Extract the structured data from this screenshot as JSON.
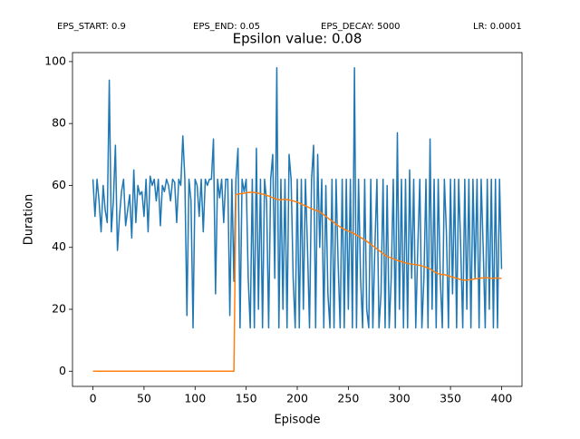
{
  "chart_data": {
    "type": "line",
    "annotations": [
      "EPS_START: 0.9",
      "EPS_END: 0.05",
      "EPS_DECAY: 5000",
      "LR: 0.0001"
    ],
    "title": "Epsilon value: 0.08",
    "x_label": "Episode",
    "y_label": "Duration",
    "xlim": [
      -20,
      420
    ],
    "ylim": [
      -4.9,
      102.9
    ],
    "xticks": [
      0,
      50,
      100,
      150,
      200,
      250,
      300,
      350,
      400
    ],
    "yticks": [
      0,
      20,
      40,
      60,
      80,
      100
    ],
    "x": [
      0,
      2,
      4,
      6,
      8,
      10,
      12,
      14,
      16,
      18,
      20,
      22,
      24,
      26,
      28,
      30,
      32,
      34,
      36,
      38,
      40,
      42,
      44,
      46,
      48,
      50,
      52,
      54,
      56,
      58,
      60,
      62,
      64,
      66,
      68,
      70,
      72,
      74,
      76,
      78,
      80,
      82,
      84,
      86,
      88,
      90,
      92,
      94,
      96,
      98,
      100,
      102,
      104,
      106,
      108,
      110,
      112,
      114,
      116,
      118,
      120,
      122,
      124,
      126,
      128,
      130,
      132,
      134,
      136,
      138,
      140,
      142,
      144,
      146,
      148,
      150,
      152,
      154,
      156,
      158,
      160,
      162,
      164,
      166,
      168,
      170,
      172,
      174,
      176,
      178,
      180,
      182,
      184,
      186,
      188,
      190,
      192,
      194,
      196,
      198,
      200,
      202,
      204,
      206,
      208,
      210,
      212,
      214,
      216,
      218,
      220,
      222,
      224,
      226,
      228,
      230,
      232,
      234,
      236,
      238,
      240,
      242,
      244,
      246,
      248,
      250,
      252,
      254,
      256,
      258,
      260,
      262,
      264,
      266,
      268,
      270,
      272,
      274,
      276,
      278,
      280,
      282,
      284,
      286,
      288,
      290,
      292,
      294,
      296,
      298,
      300,
      302,
      304,
      306,
      308,
      310,
      312,
      314,
      316,
      318,
      320,
      322,
      324,
      326,
      328,
      330,
      332,
      334,
      336,
      338,
      340,
      342,
      344,
      346,
      348,
      350,
      352,
      354,
      356,
      358,
      360,
      362,
      364,
      366,
      368,
      370,
      372,
      374,
      376,
      378,
      380,
      382,
      384,
      386,
      388,
      390,
      392,
      394,
      396,
      398,
      400
    ],
    "series": [
      {
        "color": "#1f77b4",
        "values": [
          62,
          50,
          62,
          55,
          45,
          60,
          52,
          48,
          94,
          45,
          55,
          73,
          39,
          50,
          58,
          62,
          47,
          52,
          57,
          43,
          65,
          48,
          60,
          57,
          58,
          50,
          62,
          45,
          63,
          60,
          62,
          55,
          62,
          47,
          60,
          58,
          62,
          60,
          55,
          62,
          61,
          48,
          62,
          60,
          76,
          62,
          18,
          62,
          55,
          14,
          62,
          60,
          50,
          62,
          45,
          62,
          60,
          62,
          62,
          75,
          25,
          62,
          56,
          62,
          48,
          62,
          62,
          18,
          62,
          29,
          62,
          72,
          14,
          62,
          58,
          62,
          30,
          14,
          62,
          14,
          72,
          20,
          62,
          14,
          62,
          55,
          14,
          62,
          70,
          30,
          98,
          14,
          62,
          20,
          62,
          14,
          70,
          62,
          30,
          14,
          62,
          14,
          62,
          20,
          62,
          40,
          14,
          62,
          73,
          14,
          70,
          40,
          62,
          14,
          60,
          25,
          14,
          62,
          14,
          62,
          35,
          14,
          62,
          14,
          62,
          20,
          62,
          14,
          98,
          14,
          62,
          30,
          14,
          62,
          20,
          14,
          62,
          14,
          40,
          62,
          14,
          25,
          62,
          14,
          60,
          14,
          30,
          62,
          14,
          77,
          20,
          62,
          14,
          62,
          14,
          65,
          30,
          62,
          14,
          40,
          62,
          14,
          30,
          62,
          14,
          75,
          20,
          62,
          14,
          62,
          30,
          14,
          62,
          45,
          14,
          62,
          25,
          62,
          14,
          62,
          40,
          14,
          62,
          20,
          62,
          14,
          62,
          30,
          62,
          14,
          62,
          40,
          14,
          62,
          20,
          62,
          14,
          62,
          14,
          62,
          33
        ]
      },
      {
        "color": "#ff7f0e",
        "values": [
          0,
          0,
          0,
          0,
          0,
          0,
          0,
          0,
          0,
          0,
          0,
          0,
          0,
          0,
          0,
          0,
          0,
          0,
          0,
          0,
          0,
          0,
          0,
          0,
          0,
          0,
          0,
          0,
          0,
          0,
          0,
          0,
          0,
          0,
          0,
          0,
          0,
          0,
          0,
          0,
          0,
          0,
          0,
          0,
          0,
          0,
          0,
          0,
          0,
          0,
          0,
          0,
          0,
          0,
          0,
          0,
          0,
          0,
          0,
          0,
          0,
          0,
          0,
          0,
          0,
          0,
          0,
          0,
          0,
          0,
          57,
          57.2,
          57.3,
          57.4,
          57.5,
          57.6,
          57.7,
          57.8,
          57.8,
          57.7,
          57.6,
          57.5,
          57.3,
          57.2,
          57.0,
          56.8,
          56.6,
          56.3,
          56.0,
          55.8,
          55.6,
          55.4,
          55.3,
          55.5,
          55.5,
          55.4,
          55.3,
          55.2,
          55.0,
          54.8,
          54.6,
          54.3,
          54.0,
          53.7,
          53.4,
          53.1,
          52.8,
          52.5,
          52.2,
          52.0,
          51.8,
          51.5,
          51.0,
          50.5,
          50.0,
          49.5,
          49.0,
          48.5,
          48.0,
          47.5,
          47.0,
          46.6,
          46.2,
          45.8,
          45.5,
          45.3,
          45.0,
          44.7,
          44.4,
          44.0,
          43.6,
          43.2,
          42.8,
          42.4,
          42.0,
          41.5,
          41.0,
          40.5,
          40.0,
          39.5,
          39.0,
          38.5,
          38.0,
          37.5,
          37.0,
          36.8,
          36.6,
          36.3,
          36.0,
          35.8,
          35.6,
          35.4,
          35.2,
          35.0,
          34.8,
          34.7,
          34.6,
          34.5,
          34.4,
          34.3,
          34.2,
          34.0,
          33.8,
          33.6,
          33.3,
          33.0,
          32.6,
          32.2,
          31.8,
          31.5,
          31.3,
          31.2,
          31.2,
          31.0,
          30.8,
          30.6,
          30.4,
          30.2,
          30.0,
          29.8,
          29.6,
          29.5,
          29.4,
          29.4,
          29.5,
          29.6,
          29.7,
          29.8,
          29.9,
          30.0,
          30.1,
          30.1,
          30.2,
          30.2,
          30.1,
          30.0,
          30.0,
          30.1,
          30.1,
          30.0,
          30.0
        ]
      }
    ]
  }
}
